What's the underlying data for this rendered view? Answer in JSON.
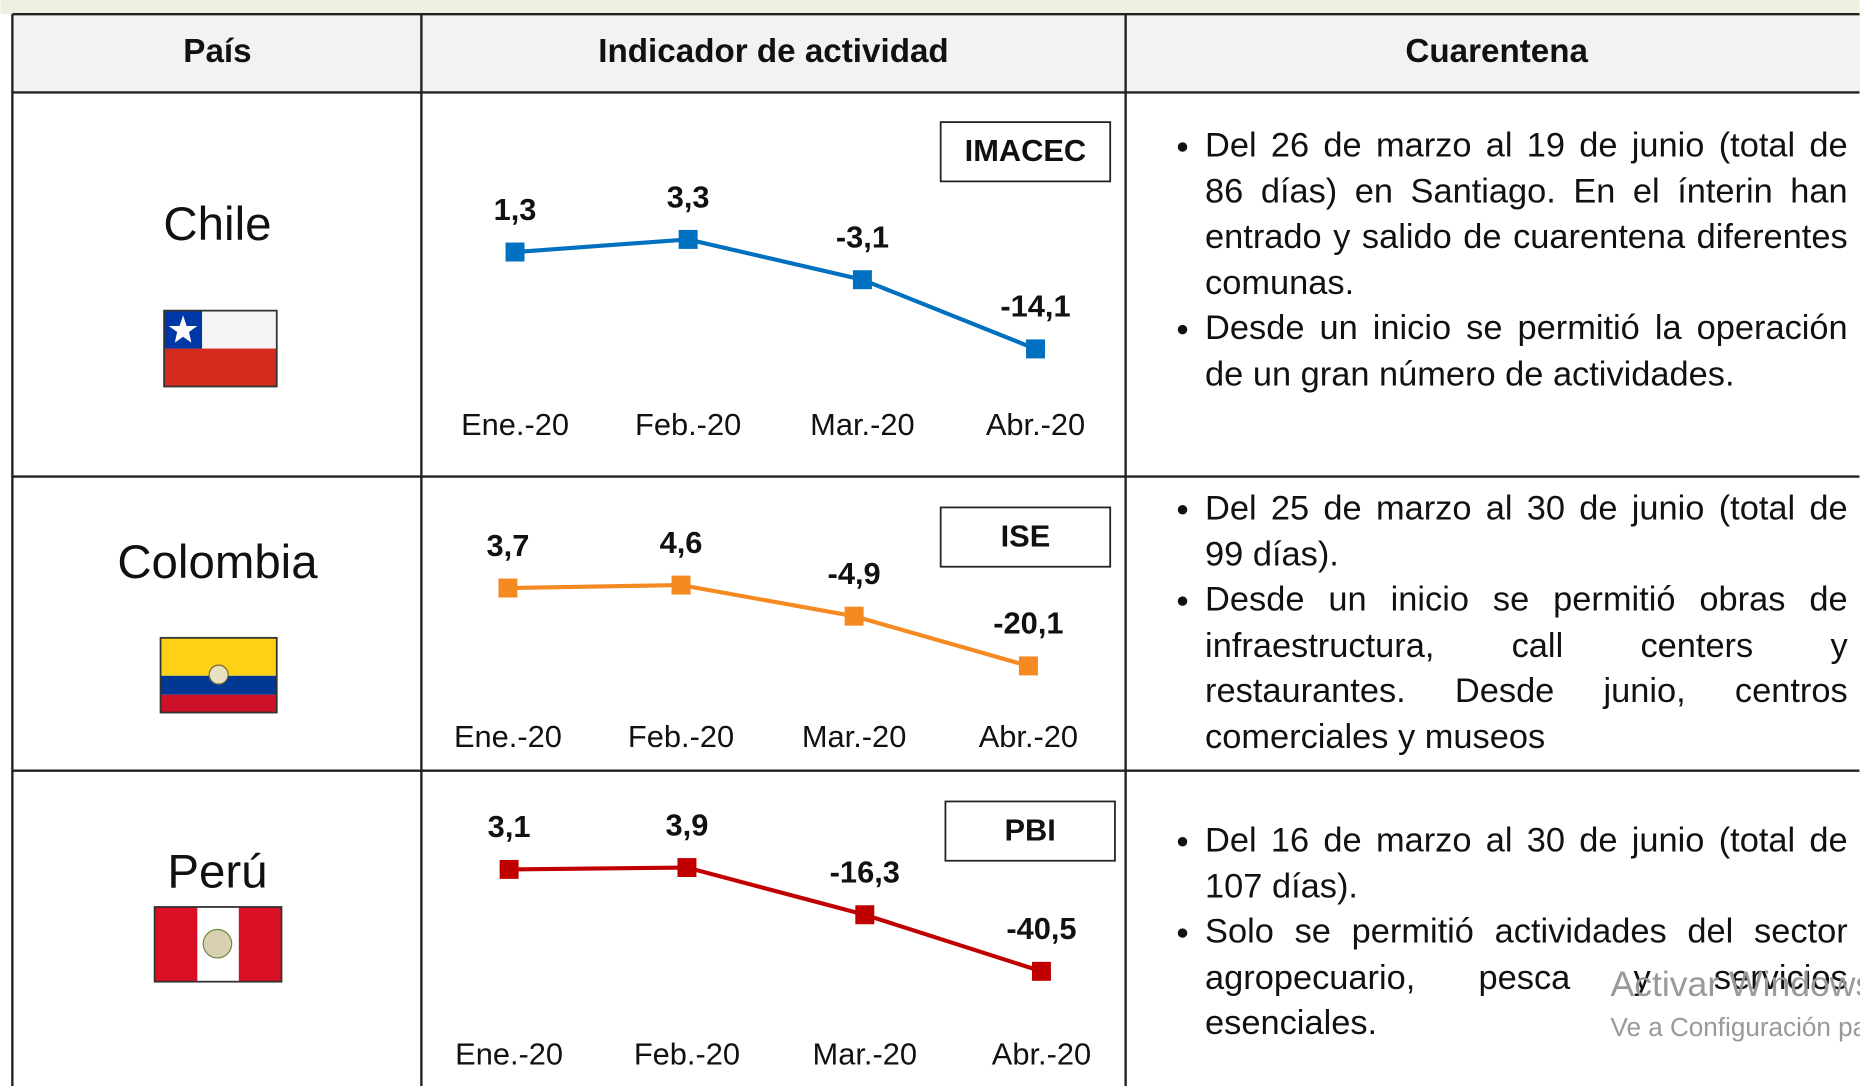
{
  "table": {
    "headers": [
      "País",
      "Indicador de actividad",
      "Cuarentena"
    ],
    "rows": [
      {
        "country": "Chile",
        "chart": {
          "type": "line",
          "label": "IMACEC",
          "categories": [
            "Ene.-20",
            "Feb.-20",
            "Mar.-20",
            "Abr.-20"
          ],
          "values": [
            1.3,
            3.3,
            -3.1,
            -14.1
          ],
          "value_labels": [
            "1,3",
            "3,3",
            "-3,1",
            "-14,1"
          ],
          "color": "#0070c0",
          "ylim": [
            -18,
            8
          ]
        },
        "bullets": [
          "Del 26 de marzo al 19 de junio (total de 86 días) en Santiago. En el ínterin han entrado y salido de cuarentena diferentes comunas.",
          "Desde un inicio se permitió la operación de un gran número de actividades."
        ]
      },
      {
        "country": "Colombia",
        "chart": {
          "type": "line",
          "label": "ISE",
          "categories": [
            "Ene.-20",
            "Feb.-20",
            "Mar.-20",
            "Abr.-20"
          ],
          "values": [
            3.7,
            4.6,
            -4.9,
            -20.1
          ],
          "value_labels": [
            "3,7",
            "4,6",
            "-4,9",
            "-20,1"
          ],
          "color": "#f58a22",
          "ylim": [
            -30,
            20
          ]
        },
        "bullets": [
          "Del 25 de marzo al 30 de junio (total de 99 días).",
          "Desde un inicio se permitió obras de infraestructura, call centers y restaurantes. Desde junio, centros comerciales y museos"
        ]
      },
      {
        "country": "Perú",
        "chart": {
          "type": "line",
          "label": "PBI",
          "categories": [
            "Ene.-20",
            "Feb.-20",
            "Mar.-20",
            "Abr.-20"
          ],
          "values": [
            3.1,
            3.9,
            -16.3,
            -40.5
          ],
          "value_labels": [
            "3,1",
            "3,9",
            "-16,3",
            "-40,5"
          ],
          "color": "#c00000",
          "ylim": [
            -50,
            20
          ]
        },
        "bullets": [
          "Del 16 de marzo al 30 de junio (total de 107 días).",
          "Solo se permitió actividades del sector agropecuario, pesca y servicios esenciales."
        ]
      }
    ]
  },
  "watermark": [
    "Activar Windows",
    "Ve a Configuración para activar Windows."
  ]
}
